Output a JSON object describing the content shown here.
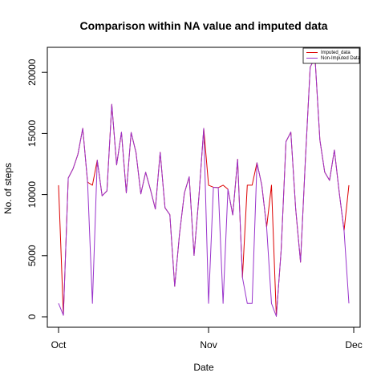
{
  "chart_data": {
    "type": "line",
    "title": "Comparison within NA value and imputed data",
    "xlabel": "Date",
    "ylabel": "No. of steps",
    "x_ticks": [
      {
        "label": "Oct",
        "day": 1
      },
      {
        "label": "Nov",
        "day": 32
      },
      {
        "label": "Dec",
        "day": 62
      }
    ],
    "y_ticks": [
      0,
      5000,
      10000,
      15000,
      20000
    ],
    "xlim": [
      1,
      61
    ],
    "ylim": [
      0,
      21194
    ],
    "legend": {
      "position": "top-right"
    },
    "series": [
      {
        "name": "Imputed_data",
        "color": "#dd0000",
        "values": [
          10766,
          126,
          11352,
          12116,
          13294,
          15420,
          11015,
          10766,
          12811,
          9900,
          10304,
          17382,
          12426,
          15098,
          10139,
          15084,
          13452,
          10056,
          11829,
          10395,
          8821,
          13460,
          8918,
          8355,
          2492,
          6778,
          10119,
          11458,
          5018,
          9819,
          15414,
          10766,
          10600,
          10571,
          10766,
          10439,
          8334,
          12883,
          3219,
          10766,
          10766,
          12608,
          10765,
          7336,
          10766,
          41,
          5441,
          14339,
          15110,
          8841,
          4472,
          12787,
          20427,
          21194,
          14478,
          11834,
          11162,
          13646,
          10183,
          7047,
          10766
        ]
      },
      {
        "name": "Non-Imputed Data",
        "color": "#9933cc",
        "values": [
          1100,
          126,
          11352,
          12116,
          13294,
          15420,
          11015,
          1100,
          12811,
          9900,
          10304,
          17382,
          12426,
          15098,
          10139,
          15084,
          13452,
          10056,
          11829,
          10395,
          8821,
          13460,
          8918,
          8355,
          2492,
          6778,
          10119,
          11458,
          5018,
          9819,
          15414,
          1100,
          10600,
          10571,
          1100,
          10439,
          8334,
          12883,
          3219,
          1100,
          1100,
          12608,
          10765,
          7336,
          1100,
          41,
          5441,
          14339,
          15110,
          8841,
          4472,
          12787,
          20427,
          21194,
          14478,
          11834,
          11162,
          13646,
          10183,
          7047,
          1100
        ]
      }
    ]
  }
}
